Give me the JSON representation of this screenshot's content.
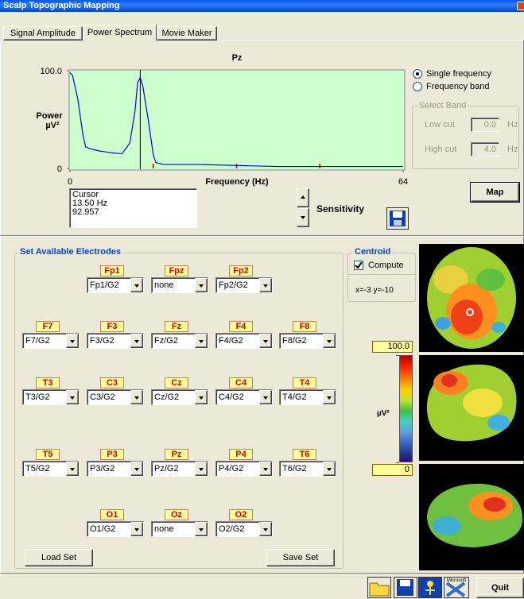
{
  "window_title": "Scalp Topographic Mapping",
  "tabs": [
    "Signal Amplitude",
    "Power Spectrum",
    "Movie Maker"
  ],
  "chart_data": {
    "type": "line",
    "title": "Pz",
    "ylabel": "Power",
    "yunit": "µV²",
    "xlabel": "Frequency (Hz)",
    "x": [
      0,
      0.5,
      1.5,
      2.5,
      3,
      4,
      5.5,
      8,
      10,
      11.5,
      12.5,
      13,
      13.5,
      14,
      15,
      16,
      16.5,
      18,
      25,
      32,
      40,
      48,
      64
    ],
    "series": [
      {
        "color": "#0000ff",
        "values": [
          98,
          95,
          71,
          34,
          22,
          20,
          18,
          16,
          15,
          26,
          59,
          88,
          93,
          84,
          51,
          14,
          6,
          4,
          4,
          3,
          2,
          2,
          2
        ]
      }
    ],
    "xlim": [
      0,
      64
    ],
    "ylim": [
      0,
      100
    ],
    "xticks": [
      0,
      64
    ],
    "yticks": [
      {
        "value": 100,
        "label": "100.0"
      },
      0
    ],
    "background": "#ccffcc",
    "cursor_x": 13.5,
    "cursor_color": "#000000",
    "markers": [
      16,
      32,
      48
    ],
    "marker_color": "#a05000"
  },
  "cursor_readout": [
    "Cursor",
    "13.50 Hz",
    "92.957"
  ],
  "sensitivity": "Sensitivity",
  "frequency_mode": {
    "options": [
      "Single frequency",
      "Frequency band"
    ],
    "selected": 0
  },
  "select_band": {
    "title": "Select Band",
    "low_label": "Low cut",
    "low_value": "0.0",
    "high_label": "High cut",
    "high_value": "4.0",
    "unit": "Hz"
  },
  "map_button": "Map",
  "electrodes_title": "Set Available Electrodes",
  "electrodes": [
    {
      "label": "Fp1",
      "ref": "Fp1/G2"
    },
    {
      "label": "Fpz",
      "ref": "none"
    },
    {
      "label": "Fp2",
      "ref": "Fp2/G2"
    },
    {
      "label": "F7",
      "ref": "F7/G2"
    },
    {
      "label": "F3",
      "ref": "F3/G2"
    },
    {
      "label": "Fz",
      "ref": "Fz/G2"
    },
    {
      "label": "F4",
      "ref": "F4/G2"
    },
    {
      "label": "F8",
      "ref": "F8/G2"
    },
    {
      "label": "T3",
      "ref": "T3/G2"
    },
    {
      "label": "C3",
      "ref": "C3/G2"
    },
    {
      "label": "Cz",
      "ref": "Cz/G2"
    },
    {
      "label": "C4",
      "ref": "C4/G2"
    },
    {
      "label": "T4",
      "ref": "T4/G2"
    },
    {
      "label": "T5",
      "ref": "T5/G2"
    },
    {
      "label": "P3",
      "ref": "P3/G2"
    },
    {
      "label": "Pz",
      "ref": "Pz/G2"
    },
    {
      "label": "P4",
      "ref": "P4/G2"
    },
    {
      "label": "T6",
      "ref": "T6/G2"
    },
    {
      "label": "O1",
      "ref": "O1/G2"
    },
    {
      "label": "Oz",
      "ref": "none"
    },
    {
      "label": "O2",
      "ref": "O2/G2"
    }
  ],
  "load_button": "Load Set",
  "save_button": "Save Set",
  "centroid": {
    "title": "Centroid",
    "compute": "Compute",
    "checked": true,
    "position": "x=-3 y=-10"
  },
  "colorbar": {
    "ticks": [
      {
        "value": 100,
        "label": "100.0"
      },
      0
    ],
    "unit": "µV²"
  },
  "toolbar_icon_label": "Microsoft",
  "quit_button": "Quit"
}
